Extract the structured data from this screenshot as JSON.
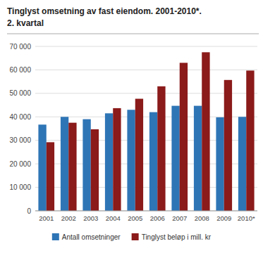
{
  "chart_data": {
    "type": "bar",
    "title": "Tinglyst omsetning av fast eiendom. 2001-2010*.",
    "subtitle": "2. kvartal",
    "categories": [
      "2001",
      "2002",
      "2003",
      "2004",
      "2005",
      "2006",
      "2007",
      "2008",
      "2009",
      "2010*"
    ],
    "series": [
      {
        "name": "Antall omsetninger",
        "color": "#2E75B6",
        "values": [
          36700,
          40000,
          39000,
          41500,
          43000,
          42000,
          44700,
          44700,
          39800,
          40000
        ]
      },
      {
        "name": "Tinglyst beløp i mill. kr",
        "color": "#8B1A1A",
        "values": [
          29200,
          37500,
          34700,
          43700,
          47700,
          53000,
          63000,
          67500,
          55700,
          59700
        ]
      }
    ],
    "ylim": [
      0,
      70000
    ],
    "yticks": [
      0,
      {
        "value": 10000,
        "label": "10 000"
      },
      {
        "value": 20000,
        "label": "20 000"
      },
      {
        "value": 30000,
        "label": "30 000"
      },
      {
        "value": 40000,
        "label": "40 000"
      },
      {
        "value": 50000,
        "label": "50 000"
      },
      {
        "value": 60000,
        "label": "60 000"
      },
      {
        "value": 70000,
        "label": "70 000"
      }
    ],
    "grid": true,
    "legend": "bottom"
  }
}
